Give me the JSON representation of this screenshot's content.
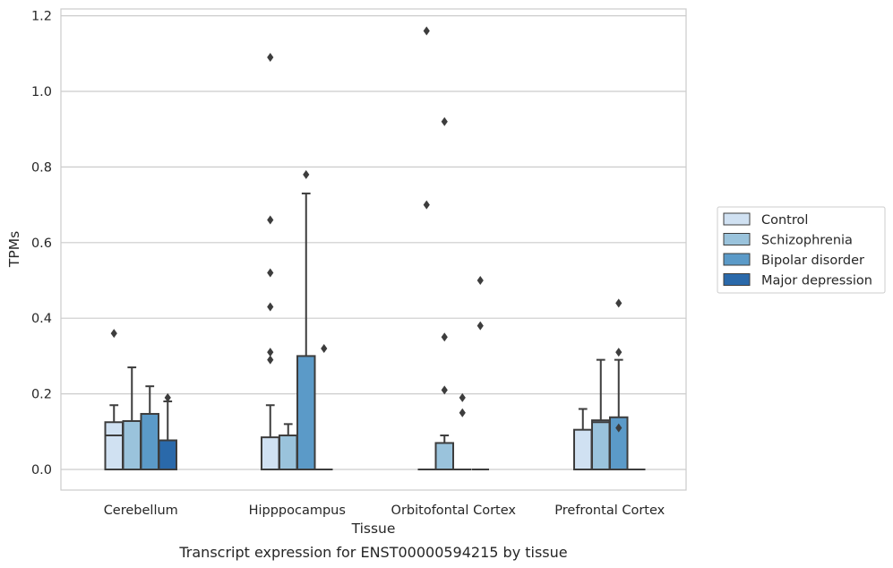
{
  "caption": "Transcript expression for ENST00000594215 by tissue",
  "chart_data": {
    "type": "box",
    "xlabel": "Tissue",
    "ylabel": "TPMs",
    "ylim": [
      -0.055,
      1.22
    ],
    "yticks": [
      "0.0",
      "0.2",
      "0.4",
      "0.6",
      "0.8",
      "1.0",
      "1.2"
    ],
    "ytick_values": [
      0.0,
      0.2,
      0.4,
      0.6,
      0.8,
      1.0,
      1.2
    ],
    "grid": "horizontal",
    "legend_position": "right",
    "categories": [
      "Cerebellum",
      "Hipppocampus",
      "Orbitofontal Cortex",
      "Prefrontal Cortex"
    ],
    "series": [
      {
        "name": "Control",
        "color": "#d0e1f2",
        "boxes": [
          {
            "q1": 0.0,
            "median": 0.09,
            "q3": 0.125,
            "whisker_low": 0.0,
            "whisker_high": 0.17,
            "outliers": [
              0.36
            ]
          },
          {
            "q1": 0.0,
            "median": 0.0,
            "q3": 0.085,
            "whisker_low": 0.0,
            "whisker_high": 0.17,
            "outliers": [
              0.29,
              0.31,
              0.43,
              0.52,
              0.66,
              1.09
            ]
          },
          {
            "q1": 0.0,
            "median": 0.0,
            "q3": 0.0,
            "whisker_low": 0.0,
            "whisker_high": 0.0,
            "outliers": [
              0.7,
              1.16
            ]
          },
          {
            "q1": 0.0,
            "median": 0.0,
            "q3": 0.105,
            "whisker_low": 0.0,
            "whisker_high": 0.16,
            "outliers": []
          }
        ]
      },
      {
        "name": "Schizophrenia",
        "color": "#9ac3dc",
        "boxes": [
          {
            "q1": 0.0,
            "median": 0.0,
            "q3": 0.128,
            "whisker_low": 0.0,
            "whisker_high": 0.27,
            "outliers": []
          },
          {
            "q1": 0.0,
            "median": 0.0,
            "q3": 0.09,
            "whisker_low": 0.0,
            "whisker_high": 0.12,
            "outliers": []
          },
          {
            "q1": 0.0,
            "median": 0.0,
            "q3": 0.07,
            "whisker_low": 0.0,
            "whisker_high": 0.09,
            "outliers": [
              0.21,
              0.35,
              0.92
            ]
          },
          {
            "q1": 0.0,
            "median": 0.125,
            "q3": 0.13,
            "whisker_low": 0.0,
            "whisker_high": 0.29,
            "outliers": []
          }
        ]
      },
      {
        "name": "Bipolar disorder",
        "color": "#5b9ac8",
        "boxes": [
          {
            "q1": 0.0,
            "median": 0.0,
            "q3": 0.147,
            "whisker_low": 0.0,
            "whisker_high": 0.22,
            "outliers": []
          },
          {
            "q1": 0.0,
            "median": 0.0,
            "q3": 0.3,
            "whisker_low": 0.0,
            "whisker_high": 0.73,
            "outliers": [
              0.78
            ]
          },
          {
            "q1": 0.0,
            "median": 0.0,
            "q3": 0.0,
            "whisker_low": 0.0,
            "whisker_high": 0.0,
            "outliers": [
              0.15,
              0.19
            ]
          },
          {
            "q1": 0.0,
            "median": 0.0,
            "q3": 0.138,
            "whisker_low": 0.0,
            "whisker_high": 0.29,
            "outliers": [
              0.11,
              0.31,
              0.44
            ]
          }
        ]
      },
      {
        "name": "Major depression",
        "color": "#2a69aa",
        "boxes": [
          {
            "q1": 0.0,
            "median": 0.0,
            "q3": 0.077,
            "whisker_low": 0.0,
            "whisker_high": 0.18,
            "outliers": [
              0.19
            ]
          },
          {
            "q1": 0.0,
            "median": 0.0,
            "q3": 0.0,
            "whisker_low": 0.0,
            "whisker_high": 0.0,
            "outliers": [
              0.32
            ]
          },
          {
            "q1": 0.0,
            "median": 0.0,
            "q3": 0.0,
            "whisker_low": 0.0,
            "whisker_high": 0.0,
            "outliers": [
              0.38,
              0.5
            ]
          },
          {
            "q1": 0.0,
            "median": 0.0,
            "q3": 0.0,
            "whisker_low": 0.0,
            "whisker_high": 0.0,
            "outliers": []
          }
        ]
      }
    ]
  }
}
